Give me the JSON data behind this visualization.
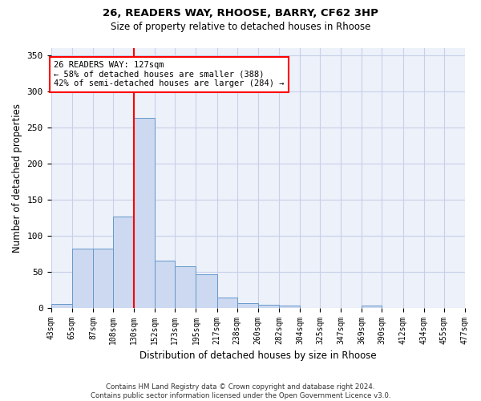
{
  "title1": "26, READERS WAY, RHOOSE, BARRY, CF62 3HP",
  "title2": "Size of property relative to detached houses in Rhoose",
  "xlabel": "Distribution of detached houses by size in Rhoose",
  "ylabel": "Number of detached properties",
  "bar_color": "#ccd9f0",
  "bar_edge_color": "#6699cc",
  "grid_color": "#c8d0e8",
  "bg_color": "#edf1fa",
  "vline_x": 130,
  "vline_color": "red",
  "annotation_text": "26 READERS WAY: 127sqm\n← 58% of detached houses are smaller (388)\n42% of semi-detached houses are larger (284) →",
  "annotation_box_color": "white",
  "annotation_box_edge_color": "red",
  "footer1": "Contains HM Land Registry data © Crown copyright and database right 2024.",
  "footer2": "Contains public sector information licensed under the Open Government Licence v3.0.",
  "bin_edges": [
    43,
    65,
    87,
    108,
    130,
    152,
    173,
    195,
    217,
    238,
    260,
    282,
    304,
    325,
    347,
    369,
    390,
    412,
    434,
    455,
    477
  ],
  "bin_labels": [
    "43sqm",
    "65sqm",
    "87sqm",
    "108sqm",
    "130sqm",
    "152sqm",
    "173sqm",
    "195sqm",
    "217sqm",
    "238sqm",
    "260sqm",
    "282sqm",
    "304sqm",
    "325sqm",
    "347sqm",
    "369sqm",
    "390sqm",
    "412sqm",
    "434sqm",
    "455sqm",
    "477sqm"
  ],
  "bar_heights": [
    5,
    82,
    82,
    127,
    263,
    65,
    57,
    46,
    14,
    6,
    4,
    3,
    0,
    0,
    0,
    3,
    0,
    0,
    0,
    0
  ],
  "ylim": [
    0,
    360
  ],
  "yticks": [
    0,
    50,
    100,
    150,
    200,
    250,
    300,
    350
  ]
}
